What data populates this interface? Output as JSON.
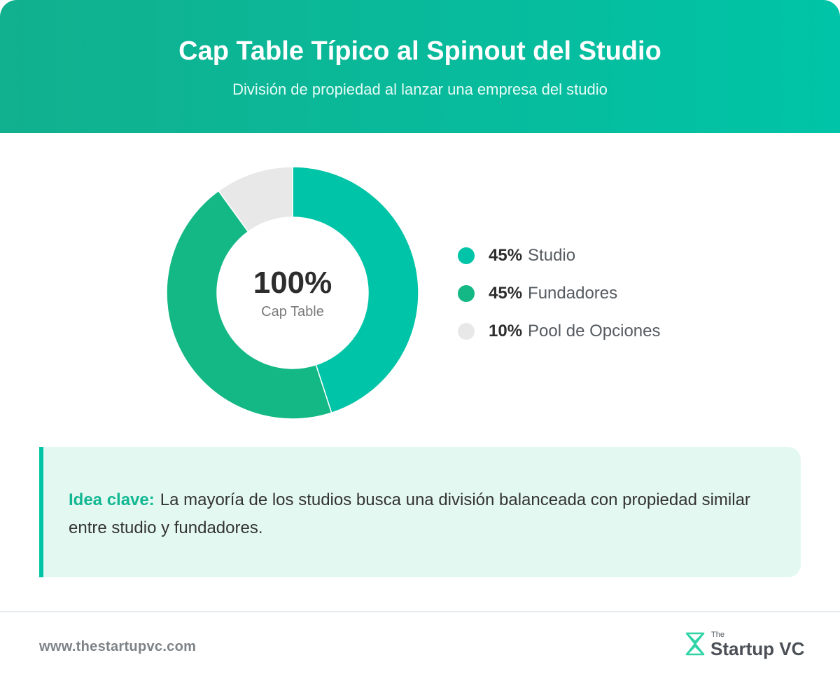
{
  "header": {
    "title": "Cap Table Típico al Spinout del Studio",
    "subtitle": "División de propiedad al lanzar una empresa del studio"
  },
  "chart_data": {
    "type": "pie",
    "title": "Cap Table Típico al Spinout del Studio",
    "subtitle": "División de propiedad al lanzar una empresa del studio",
    "center_value": "100%",
    "center_label": "Cap Table",
    "legend_position": "right",
    "series": [
      {
        "name": "Studio",
        "value": 45,
        "pct_label": "45%",
        "color": "#00c4a7"
      },
      {
        "name": "Fundadores",
        "value": 45,
        "pct_label": "45%",
        "color": "#14b884"
      },
      {
        "name": "Pool de Opciones",
        "value": 10,
        "pct_label": "10%",
        "color": "#e8e8e8"
      }
    ]
  },
  "callout": {
    "label": "Idea clave:",
    "text": "La mayoría de los studios busca una división balanceada con propiedad similar entre studio y fundadores.",
    "accent_color": "#00c4a7"
  },
  "footer": {
    "url": "www.thestartupvc.com",
    "brand_small": "The",
    "brand_name": "Startup VC",
    "brand_icon": "startupvc-logo-icon"
  }
}
